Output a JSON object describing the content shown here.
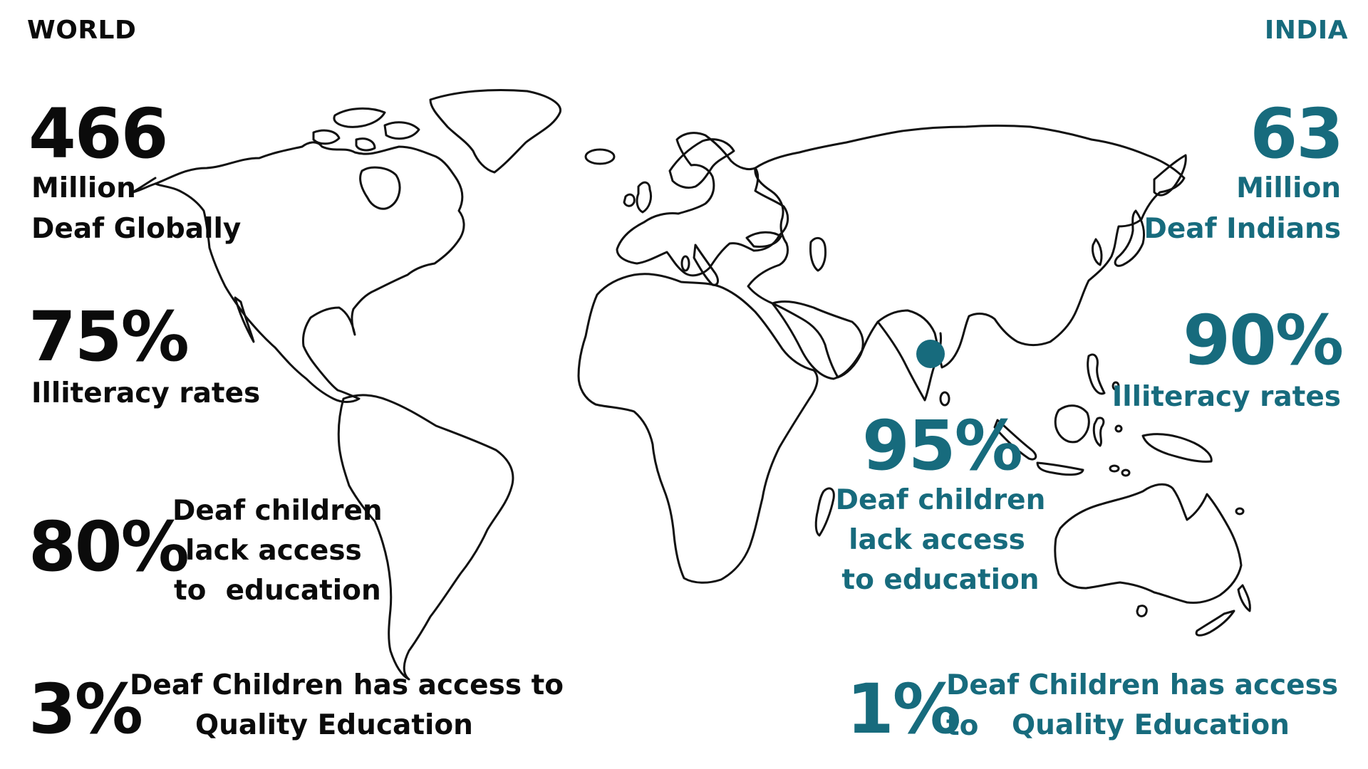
{
  "world": {
    "heading": "WORLD",
    "deaf_number": "466",
    "deaf_label_line1": "Million",
    "deaf_label_line2": "Deaf Globally",
    "illiteracy_value": "75%",
    "illiteracy_label": "Illiteracy rates",
    "no_access_value": "80%",
    "no_access_line1": "Deaf children",
    "no_access_line2": "lack access",
    "no_access_line3": "to  education",
    "quality_value": "3%",
    "quality_line1": "Deaf Children has access to",
    "quality_line2": "Quality Education"
  },
  "india": {
    "heading": "INDIA",
    "deaf_number": "63",
    "deaf_label_line1": "Million",
    "deaf_label_line2": "Deaf Indians",
    "illiteracy_value": "90%",
    "illiteracy_label": "Illiteracy rates",
    "no_access_value": "95%",
    "no_access_line1": "Deaf children",
    "no_access_line2": "lack access",
    "no_access_line3": "to education",
    "quality_value": "1%",
    "quality_line1": "Deaf Children has access to",
    "quality_line2": "Quality Education"
  },
  "colors": {
    "world_text": "#0b0b0b",
    "india_accent": "#176b7d",
    "map_outline": "#111111",
    "background": "#ffffff"
  }
}
